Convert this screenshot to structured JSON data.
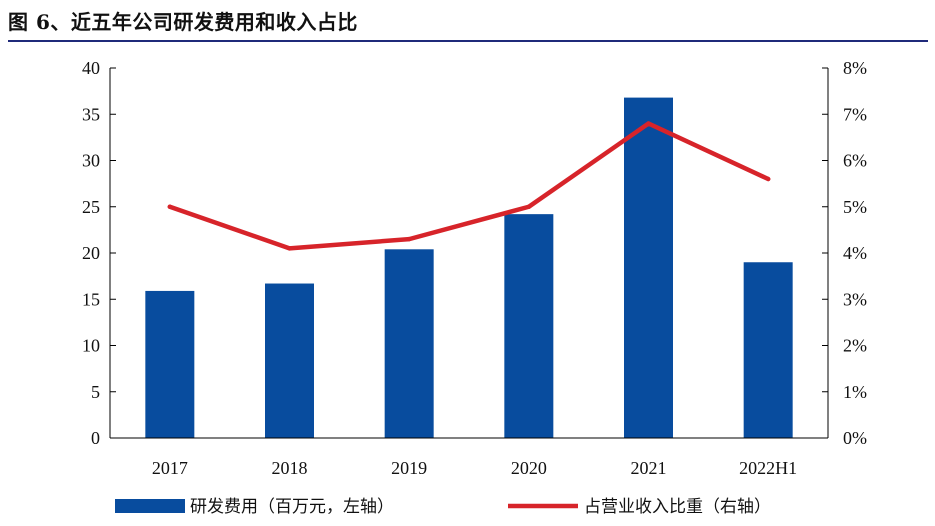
{
  "figure": {
    "title": "图 6、近五年公司研发费用和收入占比"
  },
  "chart_data": {
    "type": "bar",
    "categories": [
      "2017",
      "2018",
      "2019",
      "2020",
      "2021",
      "2022H1"
    ],
    "series": [
      {
        "name": "研发费用（百万元，左轴）",
        "type": "bar",
        "axis": "left",
        "color": "#084c9e",
        "values": [
          15.9,
          16.7,
          20.4,
          24.2,
          36.8,
          19.0
        ]
      },
      {
        "name": "占营业收入比重（右轴）",
        "type": "line",
        "axis": "right",
        "color": "#d7242a",
        "values": [
          5.0,
          4.1,
          4.3,
          5.0,
          6.8,
          5.6
        ]
      }
    ],
    "y_left": {
      "range": [
        0,
        40
      ],
      "ticks": [
        "0",
        "5",
        "10",
        "15",
        "20",
        "25",
        "30",
        "35",
        "40"
      ]
    },
    "y_right": {
      "range": [
        0,
        8
      ],
      "unit": "%",
      "ticks": [
        "0%",
        "1%",
        "2%",
        "3%",
        "4%",
        "5%",
        "6%",
        "7%",
        "8%"
      ]
    },
    "grid": false,
    "legend_position": "bottom"
  }
}
